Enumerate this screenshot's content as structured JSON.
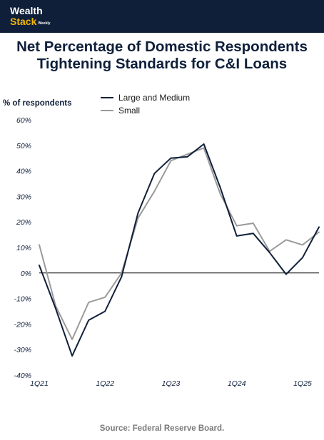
{
  "brand": {
    "name_top": "Wealth",
    "name_bottom": "Stack",
    "name_suffix": "Weekly"
  },
  "chart_data": {
    "type": "line",
    "title_lines": [
      "Net Percentage of Domestic Respondents",
      "Tightening Standards for C&I Loans"
    ],
    "title": "Net Percentage of Domestic Respondents Tightening Standards for C&I Loans",
    "ylabel": "% of respondents",
    "xlabel": "",
    "ylim": [
      -40,
      60
    ],
    "yticks": [
      60,
      50,
      40,
      30,
      20,
      10,
      0,
      -10,
      -20,
      -30,
      -40
    ],
    "ytick_labels": [
      "60%",
      "50%",
      "40%",
      "30%",
      "20%",
      "10%",
      "0%",
      "-10%",
      "-20%",
      "-30%",
      "-40%"
    ],
    "x": [
      "1Q21",
      "2Q21",
      "3Q21",
      "4Q21",
      "1Q22",
      "2Q22",
      "3Q22",
      "4Q22",
      "1Q23",
      "2Q23",
      "3Q23",
      "4Q23",
      "1Q24",
      "2Q24",
      "3Q24",
      "4Q24",
      "1Q25",
      "2Q25"
    ],
    "xtick_labels": [
      "1Q21",
      "1Q22",
      "1Q23",
      "1Q24",
      "1Q25"
    ],
    "xtick_positions": [
      "1Q21",
      "1Q22",
      "1Q23",
      "1Q24",
      "1Q25"
    ],
    "series": [
      {
        "name": "Large and Medium",
        "color": "#0f1f3a",
        "values": [
          3,
          -14,
          -32.5,
          -18.5,
          -15,
          -1.5,
          23.5,
          39,
          45,
          45.5,
          50.5,
          33.5,
          14.5,
          15.5,
          8,
          -0.5,
          6,
          18
        ]
      },
      {
        "name": "Small",
        "color": "#9a9a9a",
        "values": [
          11,
          -13,
          -26,
          -11.5,
          -9.5,
          0,
          21.5,
          32,
          44,
          46.5,
          49,
          31,
          18.5,
          19.5,
          8.5,
          13,
          11,
          16
        ]
      }
    ],
    "grid": false,
    "legend": "top-center",
    "zero_line": true
  },
  "source": "Source: Federal Reserve Board."
}
